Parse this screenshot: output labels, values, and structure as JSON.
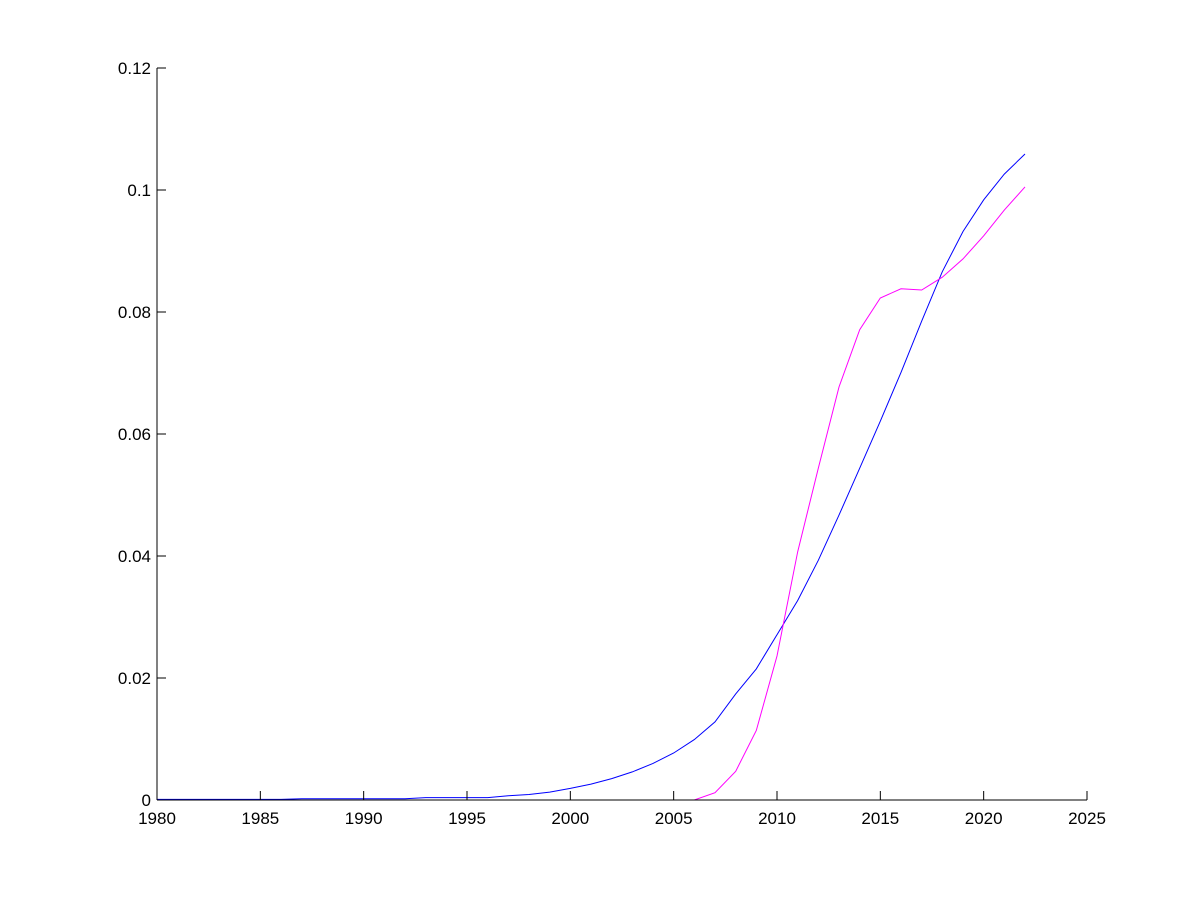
{
  "chart_data": {
    "type": "line",
    "title": "",
    "xlabel": "",
    "ylabel": "",
    "xlim": [
      1980,
      2025
    ],
    "ylim": [
      0,
      0.12
    ],
    "grid": false,
    "x_ticks": [
      "1980",
      "1985",
      "1990",
      "1995",
      "2000",
      "2005",
      "2010",
      "2015",
      "2020",
      "2025"
    ],
    "y_ticks": [
      "0",
      "0.02",
      "0.04",
      "0.06",
      "0.08",
      "0.1",
      "0.12"
    ],
    "x": [
      1980,
      1981,
      1982,
      1983,
      1984,
      1985,
      1986,
      1987,
      1988,
      1989,
      1990,
      1991,
      1992,
      1993,
      1994,
      1995,
      1996,
      1997,
      1998,
      1999,
      2000,
      2001,
      2002,
      2003,
      2004,
      2005,
      2006,
      2007,
      2008,
      2009,
      2010,
      2011,
      2012,
      2013,
      2014,
      2015,
      2016,
      2017,
      2018,
      2019,
      2020,
      2021,
      2022
    ],
    "series": [
      {
        "color": "#0000ff",
        "values": [
          0.0001,
          0.0001,
          0.0001,
          0.0001,
          0.0001,
          0.0001,
          0.0001,
          0.0002,
          0.0002,
          0.0002,
          0.0002,
          0.0002,
          0.0002,
          0.0004,
          0.0004,
          0.0004,
          0.0004,
          0.0007,
          0.0009,
          0.0013,
          0.0019,
          0.0026,
          0.0035,
          0.0046,
          0.006,
          0.0077,
          0.0099,
          0.0128,
          0.0174,
          0.0215,
          0.0271,
          0.0327,
          0.0393,
          0.0467,
          0.0544,
          0.0621,
          0.0701,
          0.0785,
          0.0866,
          0.0932,
          0.0984,
          0.1026,
          0.1059
        ]
      },
      {
        "color": "#ff00ff",
        "values": [
          0,
          0,
          0,
          0,
          0,
          0,
          0,
          0,
          0,
          0,
          0,
          0,
          0,
          0,
          0,
          0,
          0,
          0,
          0,
          0,
          0,
          0,
          0,
          0,
          0,
          0,
          0,
          0.0012,
          0.0047,
          0.0114,
          0.0236,
          0.0407,
          0.0544,
          0.0677,
          0.0771,
          0.0823,
          0.0838,
          0.0836,
          0.0857,
          0.0887,
          0.0925,
          0.0967,
          0.1005
        ]
      }
    ]
  }
}
